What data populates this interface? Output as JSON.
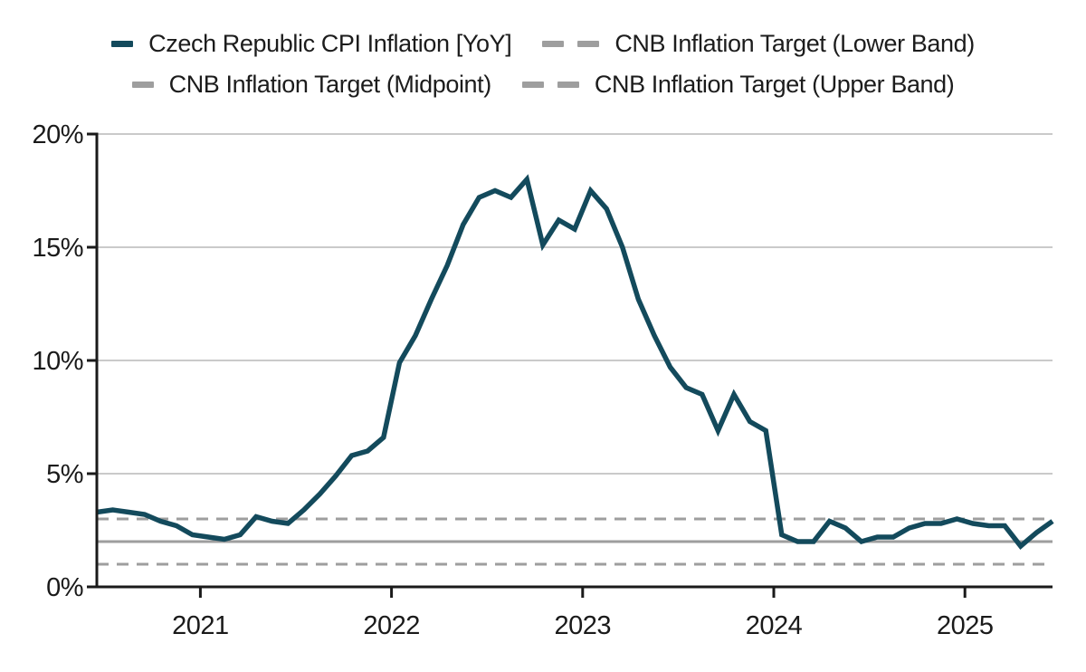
{
  "chart_data": {
    "type": "line",
    "title": "",
    "xlabel": "",
    "ylabel": "",
    "legend_position": "top",
    "grid": "horizontal",
    "ylim": [
      0,
      20
    ],
    "y_tick_labels": [
      "0%",
      "5%",
      "10%",
      "15%",
      "20%"
    ],
    "y_tick_values": [
      0,
      5,
      10,
      15,
      20
    ],
    "x_tick_labels": [
      "2021",
      "2022",
      "2023",
      "2024",
      "2025"
    ],
    "frequency": "monthly",
    "months": [
      "2020-06",
      "2020-07",
      "2020-08",
      "2020-09",
      "2020-10",
      "2020-11",
      "2020-12",
      "2021-01",
      "2021-02",
      "2021-03",
      "2021-04",
      "2021-05",
      "2021-06",
      "2021-07",
      "2021-08",
      "2021-09",
      "2021-10",
      "2021-11",
      "2021-12",
      "2022-01",
      "2022-02",
      "2022-03",
      "2022-04",
      "2022-05",
      "2022-06",
      "2022-07",
      "2022-08",
      "2022-09",
      "2022-10",
      "2022-11",
      "2022-12",
      "2023-01",
      "2023-02",
      "2023-03",
      "2023-04",
      "2023-05",
      "2023-06",
      "2023-07",
      "2023-08",
      "2023-09",
      "2023-10",
      "2023-11",
      "2023-12",
      "2024-01",
      "2024-02",
      "2024-03",
      "2024-04",
      "2024-05",
      "2024-06",
      "2024-07",
      "2024-08",
      "2024-09",
      "2024-10",
      "2024-11",
      "2024-12",
      "2025-01",
      "2025-02",
      "2025-03",
      "2025-04",
      "2025-05",
      "2025-06"
    ],
    "series": [
      {
        "name": "Czech Republic CPI Inflation [YoY]",
        "color": "#134a5c",
        "style": "solid",
        "values": [
          3.3,
          3.4,
          3.3,
          3.2,
          2.9,
          2.7,
          2.3,
          2.2,
          2.1,
          2.3,
          3.1,
          2.9,
          2.8,
          3.4,
          4.1,
          4.9,
          5.8,
          6.0,
          6.6,
          9.9,
          11.1,
          12.7,
          14.2,
          16.0,
          17.2,
          17.5,
          17.2,
          18.0,
          15.1,
          16.2,
          15.8,
          17.5,
          16.7,
          15.0,
          12.7,
          11.1,
          9.7,
          8.8,
          8.5,
          6.9,
          8.5,
          7.3,
          6.9,
          2.3,
          2.0,
          2.0,
          2.9,
          2.6,
          2.0,
          2.2,
          2.2,
          2.6,
          2.8,
          2.8,
          3.0,
          2.8,
          2.7,
          2.7,
          1.8,
          2.4,
          2.9
        ]
      },
      {
        "name": "CNB Inflation Target (Lower Band)",
        "color": "#9e9e9e",
        "style": "dashed",
        "constant": 1.0
      },
      {
        "name": "CNB Inflation Target (Midpoint)",
        "color": "#9e9e9e",
        "style": "solid",
        "constant": 2.0
      },
      {
        "name": "CNB Inflation Target (Upper Band)",
        "color": "#9e9e9e",
        "style": "dashed",
        "constant": 3.0
      }
    ],
    "colors": {
      "axis": "#1a1a1a",
      "grid": "#cacaca",
      "text": "#1a1a1a"
    }
  }
}
